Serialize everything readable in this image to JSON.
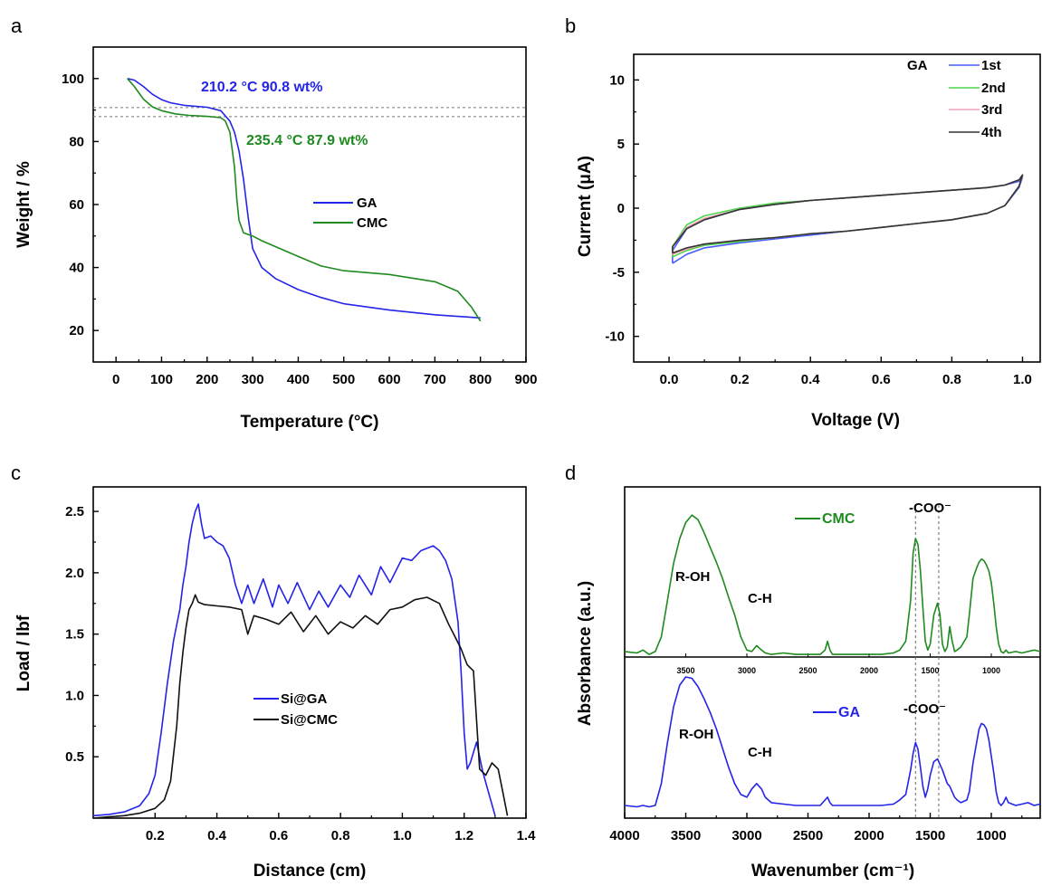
{
  "figure": {
    "panels": [
      "a",
      "b",
      "c",
      "d"
    ]
  },
  "colors": {
    "GA": "#2424e8",
    "CMC": "#1f8a1f",
    "1st": "#4a5bff",
    "2nd": "#4cd64c",
    "3rd": "#f4a0b8",
    "4th": "#333333",
    "Si@GA": "#2424e8",
    "Si@CMC": "#111111"
  },
  "chart_data": [
    {
      "panel": "a",
      "type": "line",
      "xlabel": "Temperature (°C)",
      "ylabel": "Weight / %",
      "xlim": [
        -50,
        900
      ],
      "ylim": [
        10,
        110
      ],
      "xticks": [
        0,
        100,
        200,
        300,
        400,
        500,
        600,
        700,
        800,
        900
      ],
      "yticks": [
        20,
        40,
        60,
        80,
        100
      ],
      "legend_position": "center-right",
      "grid": false,
      "annotations": [
        {
          "text": "210.2 °C  90.8 wt%",
          "series": "GA"
        },
        {
          "text": "235.4 °C  87.9 wt%",
          "series": "CMC"
        }
      ],
      "reference_lines_y": [
        90.8,
        87.9
      ],
      "series": [
        {
          "name": "GA",
          "x": [
            25,
            40,
            60,
            80,
            100,
            120,
            150,
            200,
            230,
            250,
            260,
            270,
            280,
            290,
            300,
            320,
            350,
            400,
            450,
            500,
            600,
            700,
            800
          ],
          "y": [
            100,
            99.5,
            97.5,
            95,
            93.3,
            92.3,
            91.5,
            90.9,
            89.8,
            86.5,
            83,
            77,
            68,
            56,
            46,
            40,
            36.5,
            33,
            30.5,
            28.5,
            26.5,
            25,
            24
          ]
        },
        {
          "name": "CMC",
          "x": [
            25,
            40,
            60,
            80,
            100,
            130,
            160,
            200,
            230,
            240,
            250,
            260,
            265,
            270,
            280,
            290,
            300,
            320,
            400,
            450,
            500,
            600,
            700,
            750,
            780,
            800
          ],
          "y": [
            100,
            97.5,
            93.5,
            91,
            89.8,
            88.8,
            88.3,
            88,
            87.6,
            86.5,
            83,
            72,
            62,
            55,
            51,
            50.5,
            50,
            48.5,
            43.5,
            40.5,
            39,
            37.8,
            35.5,
            32.5,
            27.5,
            23
          ]
        }
      ]
    },
    {
      "panel": "b",
      "type": "line",
      "xlabel": "Voltage (V)",
      "ylabel": "Current (μA)",
      "xlim": [
        -0.1,
        1.05
      ],
      "ylim": [
        -12,
        12
      ],
      "xticks": [
        0.0,
        0.2,
        0.4,
        0.6,
        0.8,
        1.0
      ],
      "yticks": [
        -10,
        -5,
        0,
        5,
        10
      ],
      "legend_title": "GA",
      "legend_position": "top-right",
      "grid": false,
      "series": [
        {
          "name": "1st",
          "x": [
            0.01,
            0.01,
            0.05,
            0.1,
            0.2,
            0.3,
            0.4,
            0.5,
            0.6,
            0.7,
            0.8,
            0.9,
            0.95,
            0.99,
            1.0,
            0.99,
            0.95,
            0.9,
            0.8,
            0.7,
            0.6,
            0.5,
            0.4,
            0.3,
            0.2,
            0.1,
            0.05,
            0.01
          ],
          "y": [
            -4.3,
            -3.3,
            -1.6,
            -0.9,
            -0.1,
            0.3,
            0.6,
            0.8,
            1.0,
            1.2,
            1.4,
            1.6,
            1.8,
            2.1,
            2.4,
            1.6,
            0.2,
            -0.4,
            -0.9,
            -1.2,
            -1.5,
            -1.8,
            -2.1,
            -2.4,
            -2.7,
            -3.1,
            -3.6,
            -4.3
          ]
        },
        {
          "name": "2nd",
          "x": [
            0.01,
            0.01,
            0.05,
            0.1,
            0.2,
            0.3,
            0.4,
            0.5,
            0.6,
            0.7,
            0.8,
            0.9,
            0.95,
            0.99,
            1.0,
            0.99,
            0.95,
            0.9,
            0.8,
            0.7,
            0.6,
            0.5,
            0.4,
            0.3,
            0.2,
            0.1,
            0.05,
            0.01
          ],
          "y": [
            -3.8,
            -3.0,
            -1.3,
            -0.6,
            0.0,
            0.4,
            0.6,
            0.8,
            1.0,
            1.2,
            1.4,
            1.6,
            1.8,
            2.2,
            2.5,
            1.7,
            0.2,
            -0.4,
            -0.9,
            -1.2,
            -1.5,
            -1.8,
            -2.0,
            -2.3,
            -2.6,
            -2.9,
            -3.3,
            -3.8
          ]
        },
        {
          "name": "3rd",
          "x": [
            0.01,
            0.01,
            0.05,
            0.1,
            0.2,
            0.3,
            0.4,
            0.5,
            0.6,
            0.7,
            0.8,
            0.9,
            0.95,
            0.99,
            1.0,
            0.99,
            0.95,
            0.9,
            0.8,
            0.7,
            0.6,
            0.5,
            0.4,
            0.3,
            0.2,
            0.1,
            0.05,
            0.01
          ],
          "y": [
            -3.6,
            -3.0,
            -1.5,
            -0.8,
            -0.1,
            0.3,
            0.6,
            0.8,
            1.0,
            1.2,
            1.4,
            1.6,
            1.8,
            2.2,
            2.5,
            1.7,
            0.2,
            -0.4,
            -0.9,
            -1.2,
            -1.5,
            -1.8,
            -2.0,
            -2.3,
            -2.5,
            -2.8,
            -3.2,
            -3.6
          ]
        },
        {
          "name": "4th",
          "x": [
            0.01,
            0.01,
            0.05,
            0.1,
            0.2,
            0.3,
            0.4,
            0.5,
            0.6,
            0.7,
            0.8,
            0.9,
            0.95,
            0.99,
            1.0,
            0.99,
            0.95,
            0.9,
            0.8,
            0.7,
            0.6,
            0.5,
            0.4,
            0.3,
            0.2,
            0.1,
            0.05,
            0.01
          ],
          "y": [
            -3.5,
            -3.0,
            -1.6,
            -0.9,
            -0.1,
            0.3,
            0.6,
            0.8,
            1.0,
            1.2,
            1.4,
            1.6,
            1.8,
            2.2,
            2.6,
            1.7,
            0.2,
            -0.4,
            -0.9,
            -1.2,
            -1.5,
            -1.8,
            -2.0,
            -2.3,
            -2.5,
            -2.8,
            -3.1,
            -3.5
          ]
        }
      ]
    },
    {
      "panel": "c",
      "type": "line",
      "xlabel": "Distance (cm)",
      "ylabel": "Load / lbf",
      "xlim": [
        0.0,
        1.4
      ],
      "ylim": [
        0.0,
        2.7
      ],
      "xticks": [
        0.2,
        0.4,
        0.6,
        0.8,
        1.0,
        1.2,
        1.4
      ],
      "yticks": [
        0.5,
        1.0,
        1.5,
        2.0,
        2.5
      ],
      "legend_position": "center",
      "grid": false,
      "series": [
        {
          "name": "Si@GA",
          "x": [
            0.0,
            0.05,
            0.1,
            0.15,
            0.18,
            0.2,
            0.22,
            0.24,
            0.26,
            0.28,
            0.29,
            0.3,
            0.31,
            0.32,
            0.33,
            0.34,
            0.35,
            0.36,
            0.38,
            0.4,
            0.42,
            0.44,
            0.46,
            0.48,
            0.5,
            0.52,
            0.55,
            0.58,
            0.6,
            0.63,
            0.66,
            0.7,
            0.73,
            0.76,
            0.8,
            0.83,
            0.86,
            0.9,
            0.93,
            0.96,
            1.0,
            1.03,
            1.06,
            1.1,
            1.12,
            1.14,
            1.16,
            1.18,
            1.19,
            1.2,
            1.21,
            1.22,
            1.24,
            1.26,
            1.28,
            1.3
          ],
          "y": [
            0.02,
            0.03,
            0.05,
            0.1,
            0.2,
            0.35,
            0.7,
            1.1,
            1.45,
            1.7,
            1.9,
            2.05,
            2.25,
            2.4,
            2.5,
            2.56,
            2.4,
            2.28,
            2.3,
            2.25,
            2.22,
            2.12,
            1.9,
            1.75,
            1.9,
            1.75,
            1.95,
            1.72,
            1.9,
            1.75,
            1.92,
            1.7,
            1.85,
            1.72,
            1.9,
            1.8,
            1.98,
            1.82,
            2.05,
            1.92,
            2.12,
            2.1,
            2.18,
            2.22,
            2.18,
            2.1,
            1.95,
            1.6,
            1.2,
            0.7,
            0.4,
            0.45,
            0.62,
            0.38,
            0.2,
            0.02
          ]
        },
        {
          "name": "Si@CMC",
          "x": [
            0.0,
            0.05,
            0.1,
            0.15,
            0.2,
            0.23,
            0.25,
            0.27,
            0.28,
            0.29,
            0.3,
            0.31,
            0.32,
            0.33,
            0.34,
            0.36,
            0.4,
            0.44,
            0.48,
            0.5,
            0.52,
            0.56,
            0.6,
            0.64,
            0.68,
            0.72,
            0.76,
            0.8,
            0.84,
            0.88,
            0.92,
            0.96,
            1.0,
            1.04,
            1.08,
            1.12,
            1.15,
            1.17,
            1.19,
            1.21,
            1.23,
            1.24,
            1.25,
            1.27,
            1.29,
            1.31,
            1.33,
            1.34
          ],
          "y": [
            0.0,
            0.01,
            0.02,
            0.04,
            0.08,
            0.15,
            0.3,
            0.75,
            1.1,
            1.35,
            1.55,
            1.7,
            1.75,
            1.82,
            1.76,
            1.74,
            1.73,
            1.72,
            1.7,
            1.5,
            1.65,
            1.62,
            1.58,
            1.68,
            1.52,
            1.65,
            1.5,
            1.6,
            1.55,
            1.65,
            1.58,
            1.7,
            1.72,
            1.78,
            1.8,
            1.75,
            1.58,
            1.48,
            1.38,
            1.25,
            1.2,
            0.8,
            0.4,
            0.35,
            0.45,
            0.4,
            0.15,
            0.02
          ]
        }
      ]
    },
    {
      "panel": "d",
      "type": "line",
      "xlabel": "Wavenumber (cm⁻¹)",
      "ylabel": "Absorbance (a.u.)",
      "xlim": [
        4000,
        600
      ],
      "xticks": [
        4000,
        3500,
        3000,
        2500,
        2000,
        1500,
        1000
      ],
      "inner_xticks": [
        "3500",
        "3000",
        "2500",
        "2000",
        "1500",
        "1000"
      ],
      "reference_lines_x": [
        1620,
        1430
      ],
      "grid": false,
      "subpanels": [
        {
          "name": "CMC",
          "labels": [
            "R-OH",
            "C-H",
            "-COO⁻"
          ],
          "x": [
            4000,
            3900,
            3850,
            3800,
            3750,
            3700,
            3650,
            3600,
            3550,
            3500,
            3450,
            3400,
            3350,
            3300,
            3250,
            3200,
            3150,
            3100,
            3050,
            3000,
            2960,
            2920,
            2880,
            2850,
            2800,
            2700,
            2600,
            2500,
            2400,
            2360,
            2340,
            2320,
            2300,
            2200,
            2100,
            2000,
            1900,
            1800,
            1750,
            1700,
            1660,
            1640,
            1620,
            1600,
            1580,
            1560,
            1540,
            1520,
            1500,
            1470,
            1440,
            1420,
            1400,
            1380,
            1360,
            1340,
            1320,
            1300,
            1280,
            1250,
            1200,
            1180,
            1150,
            1120,
            1100,
            1080,
            1060,
            1040,
            1020,
            1000,
            980,
            960,
            940,
            920,
            900,
            880,
            860,
            800,
            750,
            700,
            650,
            600
          ],
          "y": [
            0.05,
            0.04,
            0.06,
            0.03,
            0.05,
            0.15,
            0.4,
            0.65,
            0.82,
            0.93,
            0.98,
            0.95,
            0.86,
            0.76,
            0.66,
            0.55,
            0.42,
            0.3,
            0.15,
            0.06,
            0.05,
            0.09,
            0.06,
            0.04,
            0.03,
            0.04,
            0.03,
            0.03,
            0.03,
            0.06,
            0.12,
            0.06,
            0.03,
            0.03,
            0.03,
            0.03,
            0.03,
            0.04,
            0.06,
            0.12,
            0.4,
            0.72,
            0.82,
            0.78,
            0.6,
            0.35,
            0.12,
            0.06,
            0.1,
            0.3,
            0.38,
            0.3,
            0.1,
            0.05,
            0.08,
            0.22,
            0.12,
            0.05,
            0.06,
            0.08,
            0.15,
            0.3,
            0.55,
            0.62,
            0.66,
            0.68,
            0.67,
            0.64,
            0.6,
            0.52,
            0.38,
            0.22,
            0.1,
            0.05,
            0.04,
            0.06,
            0.04,
            0.05,
            0.04,
            0.05,
            0.06,
            0.05
          ]
        },
        {
          "name": "GA",
          "labels": [
            "R-OH",
            "C-H",
            "-COO⁻"
          ],
          "x": [
            4000,
            3900,
            3850,
            3800,
            3750,
            3700,
            3650,
            3600,
            3550,
            3500,
            3450,
            3400,
            3350,
            3300,
            3250,
            3200,
            3150,
            3100,
            3050,
            3000,
            2960,
            2920,
            2880,
            2850,
            2800,
            2700,
            2600,
            2500,
            2400,
            2360,
            2340,
            2320,
            2300,
            2200,
            2100,
            2000,
            1900,
            1800,
            1750,
            1700,
            1660,
            1640,
            1620,
            1600,
            1580,
            1560,
            1540,
            1520,
            1500,
            1470,
            1440,
            1420,
            1400,
            1380,
            1360,
            1340,
            1320,
            1300,
            1280,
            1250,
            1200,
            1180,
            1150,
            1120,
            1100,
            1080,
            1060,
            1040,
            1020,
            1000,
            980,
            960,
            940,
            920,
            900,
            880,
            860,
            800,
            750,
            700,
            650,
            600
          ],
          "y": [
            0.04,
            0.03,
            0.04,
            0.03,
            0.04,
            0.2,
            0.5,
            0.76,
            0.92,
            0.98,
            0.97,
            0.91,
            0.82,
            0.72,
            0.6,
            0.46,
            0.32,
            0.2,
            0.12,
            0.1,
            0.16,
            0.2,
            0.16,
            0.1,
            0.06,
            0.05,
            0.04,
            0.04,
            0.04,
            0.08,
            0.1,
            0.06,
            0.04,
            0.04,
            0.04,
            0.04,
            0.04,
            0.05,
            0.08,
            0.12,
            0.3,
            0.42,
            0.5,
            0.45,
            0.32,
            0.18,
            0.1,
            0.16,
            0.26,
            0.36,
            0.38,
            0.34,
            0.3,
            0.25,
            0.2,
            0.18,
            0.14,
            0.1,
            0.08,
            0.06,
            0.08,
            0.14,
            0.35,
            0.5,
            0.6,
            0.64,
            0.63,
            0.6,
            0.52,
            0.4,
            0.28,
            0.14,
            0.06,
            0.04,
            0.06,
            0.1,
            0.06,
            0.04,
            0.05,
            0.06,
            0.04,
            0.05
          ]
        }
      ]
    }
  ]
}
